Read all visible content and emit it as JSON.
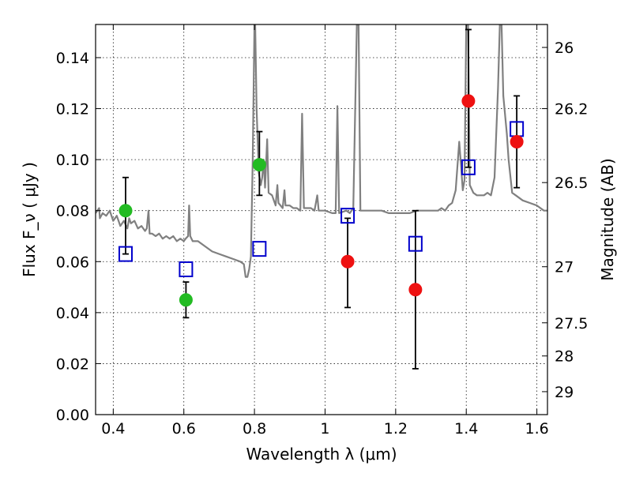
{
  "chart_data": {
    "type": "scatter",
    "xlabel": "Wavelength  λ (μm)",
    "ylabel": "Flux  F_ν  ( μJy )",
    "y2label": "Magnitude (AB)",
    "xlim": [
      0.35,
      1.63
    ],
    "ylim": [
      0.0,
      0.153
    ],
    "grid": true,
    "x_ticks": [
      0.4,
      0.6,
      0.8,
      1.0,
      1.2,
      1.4,
      1.6
    ],
    "x_tick_labels": [
      "0.4",
      "0.6",
      "0.8",
      "1",
      "1.2",
      "1.4",
      "1.6"
    ],
    "y_ticks": [
      0.0,
      0.02,
      0.04,
      0.06,
      0.08,
      0.1,
      0.12,
      0.14
    ],
    "y_tick_labels": [
      "0.00",
      "0.02",
      "0.04",
      "0.06",
      "0.08",
      "0.10",
      "0.12",
      "0.14"
    ],
    "y2_ticks": [
      {
        "flux": 0.144,
        "label": "26"
      },
      {
        "flux": 0.12,
        "label": "26.2"
      },
      {
        "flux": 0.091,
        "label": "26.5"
      },
      {
        "flux": 0.058,
        "label": "27"
      },
      {
        "flux": 0.036,
        "label": "27.5"
      },
      {
        "flux": 0.023,
        "label": "28"
      },
      {
        "flux": 0.009,
        "label": "29"
      }
    ],
    "series": [
      {
        "marker": "filled-circle",
        "color": "#22bb22",
        "points": [
          {
            "x": 0.435,
            "y": 0.08,
            "yerr_low": 0.063,
            "yerr_high": 0.093
          },
          {
            "x": 0.606,
            "y": 0.045,
            "yerr_low": 0.038,
            "yerr_high": 0.052
          },
          {
            "x": 0.814,
            "y": 0.098,
            "yerr_low": 0.086,
            "yerr_high": 0.111
          }
        ]
      },
      {
        "marker": "filled-circle",
        "color": "#ee1111",
        "points": [
          {
            "x": 1.064,
            "y": 0.06,
            "yerr_low": 0.042,
            "yerr_high": 0.077
          },
          {
            "x": 1.256,
            "y": 0.049,
            "yerr_low": 0.018,
            "yerr_high": 0.08
          },
          {
            "x": 1.406,
            "y": 0.123,
            "yerr_low": 0.097,
            "yerr_high": 0.151
          },
          {
            "x": 1.543,
            "y": 0.107,
            "yerr_low": 0.089,
            "yerr_high": 0.125
          }
        ]
      },
      {
        "marker": "open-square",
        "color": "#0000cc",
        "points": [
          {
            "x": 0.435,
            "y": 0.063
          },
          {
            "x": 0.606,
            "y": 0.057
          },
          {
            "x": 0.814,
            "y": 0.065
          },
          {
            "x": 1.064,
            "y": 0.078
          },
          {
            "x": 1.256,
            "y": 0.067
          },
          {
            "x": 1.406,
            "y": 0.097
          },
          {
            "x": 1.543,
            "y": 0.112
          }
        ]
      },
      {
        "marker": "line",
        "color": "#808080",
        "points": [
          [
            0.35,
            0.079
          ],
          [
            0.36,
            0.081
          ],
          [
            0.362,
            0.077
          ],
          [
            0.37,
            0.079
          ],
          [
            0.38,
            0.078
          ],
          [
            0.39,
            0.08
          ],
          [
            0.4,
            0.076
          ],
          [
            0.41,
            0.078
          ],
          [
            0.42,
            0.074
          ],
          [
            0.43,
            0.076
          ],
          [
            0.44,
            0.073
          ],
          [
            0.445,
            0.077
          ],
          [
            0.45,
            0.075
          ],
          [
            0.46,
            0.076
          ],
          [
            0.47,
            0.073
          ],
          [
            0.48,
            0.074
          ],
          [
            0.49,
            0.072
          ],
          [
            0.495,
            0.073
          ],
          [
            0.5,
            0.08
          ],
          [
            0.503,
            0.071
          ],
          [
            0.51,
            0.071
          ],
          [
            0.52,
            0.07
          ],
          [
            0.53,
            0.071
          ],
          [
            0.54,
            0.069
          ],
          [
            0.55,
            0.07
          ],
          [
            0.56,
            0.069
          ],
          [
            0.57,
            0.07
          ],
          [
            0.58,
            0.068
          ],
          [
            0.59,
            0.069
          ],
          [
            0.6,
            0.068
          ],
          [
            0.605,
            0.069
          ],
          [
            0.612,
            0.07
          ],
          [
            0.615,
            0.082
          ],
          [
            0.618,
            0.07
          ],
          [
            0.625,
            0.068
          ],
          [
            0.64,
            0.068
          ],
          [
            0.66,
            0.066
          ],
          [
            0.68,
            0.064
          ],
          [
            0.7,
            0.063
          ],
          [
            0.72,
            0.062
          ],
          [
            0.74,
            0.061
          ],
          [
            0.76,
            0.06
          ],
          [
            0.77,
            0.059
          ],
          [
            0.775,
            0.054
          ],
          [
            0.78,
            0.054
          ],
          [
            0.785,
            0.057
          ],
          [
            0.79,
            0.062
          ],
          [
            0.795,
            0.1
          ],
          [
            0.8,
            0.153
          ],
          [
            0.802,
            0.153
          ],
          [
            0.806,
            0.12
          ],
          [
            0.812,
            0.095
          ],
          [
            0.818,
            0.09
          ],
          [
            0.822,
            0.093
          ],
          [
            0.826,
            0.1
          ],
          [
            0.83,
            0.089
          ],
          [
            0.836,
            0.108
          ],
          [
            0.84,
            0.087
          ],
          [
            0.85,
            0.086
          ],
          [
            0.86,
            0.082
          ],
          [
            0.865,
            0.09
          ],
          [
            0.868,
            0.083
          ],
          [
            0.88,
            0.081
          ],
          [
            0.885,
            0.088
          ],
          [
            0.888,
            0.082
          ],
          [
            0.9,
            0.082
          ],
          [
            0.91,
            0.081
          ],
          [
            0.92,
            0.081
          ],
          [
            0.93,
            0.08
          ],
          [
            0.935,
            0.118
          ],
          [
            0.94,
            0.081
          ],
          [
            0.96,
            0.081
          ],
          [
            0.97,
            0.08
          ],
          [
            0.978,
            0.086
          ],
          [
            0.982,
            0.08
          ],
          [
            1.0,
            0.08
          ],
          [
            1.02,
            0.079
          ],
          [
            1.03,
            0.079
          ],
          [
            1.035,
            0.121
          ],
          [
            1.04,
            0.079
          ],
          [
            1.06,
            0.08
          ],
          [
            1.07,
            0.079
          ],
          [
            1.08,
            0.081
          ],
          [
            1.09,
            0.153
          ],
          [
            1.095,
            0.153
          ],
          [
            1.1,
            0.08
          ],
          [
            1.12,
            0.08
          ],
          [
            1.14,
            0.08
          ],
          [
            1.16,
            0.08
          ],
          [
            1.18,
            0.079
          ],
          [
            1.2,
            0.079
          ],
          [
            1.22,
            0.079
          ],
          [
            1.24,
            0.079
          ],
          [
            1.26,
            0.08
          ],
          [
            1.28,
            0.08
          ],
          [
            1.3,
            0.08
          ],
          [
            1.32,
            0.08
          ],
          [
            1.33,
            0.081
          ],
          [
            1.34,
            0.08
          ],
          [
            1.35,
            0.082
          ],
          [
            1.36,
            0.083
          ],
          [
            1.37,
            0.088
          ],
          [
            1.38,
            0.107
          ],
          [
            1.385,
            0.098
          ],
          [
            1.39,
            0.088
          ],
          [
            1.395,
            0.092
          ],
          [
            1.4,
            0.153
          ],
          [
            1.405,
            0.153
          ],
          [
            1.41,
            0.09
          ],
          [
            1.42,
            0.087
          ],
          [
            1.43,
            0.086
          ],
          [
            1.44,
            0.086
          ],
          [
            1.45,
            0.086
          ],
          [
            1.46,
            0.087
          ],
          [
            1.47,
            0.086
          ],
          [
            1.48,
            0.093
          ],
          [
            1.49,
            0.128
          ],
          [
            1.495,
            0.153
          ],
          [
            1.5,
            0.153
          ],
          [
            1.505,
            0.125
          ],
          [
            1.515,
            0.11
          ],
          [
            1.52,
            0.1
          ],
          [
            1.53,
            0.087
          ],
          [
            1.54,
            0.086
          ],
          [
            1.56,
            0.084
          ],
          [
            1.58,
            0.083
          ],
          [
            1.6,
            0.082
          ],
          [
            1.61,
            0.081
          ],
          [
            1.62,
            0.08
          ],
          [
            1.63,
            0.08
          ]
        ]
      }
    ]
  }
}
